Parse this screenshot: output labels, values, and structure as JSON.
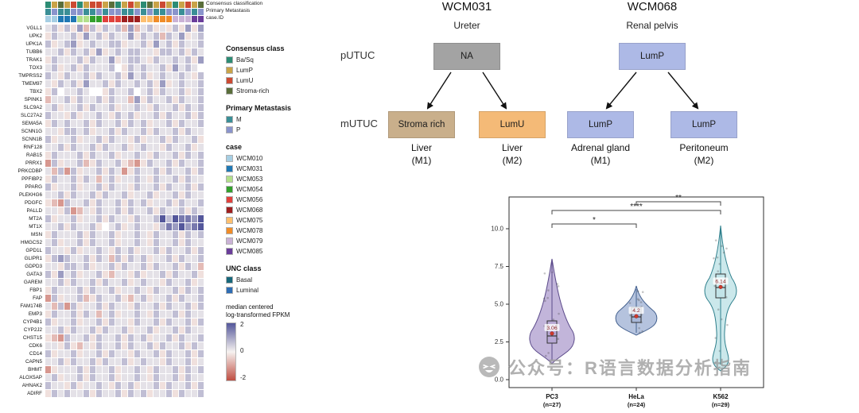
{
  "figure": {
    "annotation_labels": {
      "consensus": "Consensus classification",
      "metastasis": "Primary Metastasis",
      "case": "case.ID"
    },
    "tree_row_labels": {
      "primary": "pUTUC",
      "metastasis": "mUTUC"
    },
    "watermark": "公众号：R语言数据分析指南"
  },
  "legends": {
    "consensus": {
      "title": "Consensus class",
      "items": [
        {
          "label": "Ba/Sq",
          "color": "#2c8c74"
        },
        {
          "label": "LumP",
          "color": "#c9a348"
        },
        {
          "label": "LumU",
          "color": "#cc4a33"
        },
        {
          "label": "Stroma-rich",
          "color": "#5a6e3a"
        }
      ]
    },
    "metastasis": {
      "title": "Primary Metastasis",
      "items": [
        {
          "label": "M",
          "color": "#3a8f96"
        },
        {
          "label": "P",
          "color": "#8a94cc"
        }
      ]
    },
    "case": {
      "title": "case",
      "items": [
        {
          "label": "WCM010",
          "color": "#a6cee3"
        },
        {
          "label": "WCM031",
          "color": "#1f78b4"
        },
        {
          "label": "WCM053",
          "color": "#b2df8a"
        },
        {
          "label": "WCM054",
          "color": "#33a02c"
        },
        {
          "label": "WCM056",
          "color": "#e0413c"
        },
        {
          "label": "WCM068",
          "color": "#9e1f1f"
        },
        {
          "label": "WCM075",
          "color": "#fdbf6f"
        },
        {
          "label": "WCM078",
          "color": "#f08c28"
        },
        {
          "label": "WCM079",
          "color": "#cab2d6"
        },
        {
          "label": "WCM085",
          "color": "#6a3d9a"
        }
      ]
    },
    "unc": {
      "title": "UNC class",
      "items": [
        {
          "label": "Basal",
          "color": "#17677a"
        },
        {
          "label": "Luminal",
          "color": "#2e6db4"
        }
      ]
    },
    "scale": {
      "title_lines": [
        "median centered",
        "log-transformed FPKM"
      ],
      "ticks": [
        "2",
        "0",
        "-2"
      ],
      "top_color": "#54579b",
      "mid_color": "#f6f2f0",
      "bottom_color": "#bf4e42"
    }
  },
  "trees": [
    {
      "title": "WCM031",
      "site": "Ureter",
      "parent": {
        "label": "NA",
        "color": "#a3a3a3"
      },
      "children": [
        {
          "label": "Stroma rich",
          "color": "#c9af8b",
          "site": "Liver",
          "met": "(M1)"
        },
        {
          "label": "LumU",
          "color": "#f4ba77",
          "site": "Liver",
          "met": "(M2)"
        }
      ]
    },
    {
      "title": "WCM068",
      "site": "Renal pelvis",
      "parent": {
        "label": "LumP",
        "color": "#adb9e6"
      },
      "children": [
        {
          "label": "LumP",
          "color": "#adb9e6",
          "site": "Adrenal gland",
          "met": "(M1)"
        },
        {
          "label": "LumP",
          "color": "#adb9e6",
          "site": "Peritoneum",
          "met": "(M2)"
        }
      ]
    }
  ],
  "chart_data": [
    {
      "type": "heatmap",
      "n_cols": 25,
      "colorbar": {
        "label": "median centered log-transformed FPKM",
        "ticks": [
          2,
          0,
          -2
        ],
        "positive_color": "#54579b",
        "zero_color": "#f6f2f0",
        "negative_color": "#bf4e42"
      },
      "genes": [
        "VGLL1",
        "UPK2",
        "UPK1A",
        "TUBB6",
        "TRAK1",
        "TOX3",
        "TMPRSS2",
        "TMEM97",
        "TBX2",
        "SPINK1",
        "SLC9A2",
        "SLC27A2",
        "SEMA5A",
        "SCNN1G",
        "SCNN1B",
        "RNF128",
        "RAB15",
        "PRRX1",
        "PRKCDBP",
        "PPFIBP2",
        "PPARG",
        "PLEKHG6",
        "PDGFC",
        "PALLD",
        "MT2A",
        "MT1X",
        "MSN",
        "HMGCS2",
        "GPD1L",
        "GLIPR1",
        "GDPD3",
        "GATA3",
        "GAREM",
        "FBP1",
        "FAP",
        "FAM174B",
        "EMP3",
        "CYP4B1",
        "CYP2J2",
        "CHST15",
        "CDK6",
        "CD14",
        "CAPN5",
        "BHMT",
        "ALOX5AP",
        "AHNAK2",
        "ADIRF"
      ],
      "annotations": {
        "consensus_classification": "BLSLUBLUULSBLULBSLULBLULS",
        "primary_metastasis": "MPMMPPMMPMPPMMPMPMMPPMPMP",
        "case_id": "0011122334445556677788899",
        "consensus_key": {
          "B": "Ba/Sq",
          "L": "LumP",
          "U": "LumU",
          "S": "Stroma-rich"
        },
        "metastasis_key": {
          "M": "M",
          "P": "P"
        },
        "case_key": {
          "0": "WCM010",
          "1": "WCM031",
          "2": "WCM053",
          "3": "WCM054",
          "4": "WCM056",
          "5": "WCM068",
          "6": "WCM075",
          "7": "WCM078",
          "8": "WCM079",
          "9": "WCM085"
        }
      },
      "encoding": "digit 0-9 maps -2.5(red) .. +2.5(blue), x = missing(white)",
      "values_encoded": [
        "5646473646563735645464747",
        "4655647564655746563657456",
        "6456745655664556475646556",
        "5564656474565665546656465",
        "4655564655745665465565647",
        "56456465556x465655647565x",
        "6546556465564756456556546",
        "5465647556465565647456556",
        "46x5565xx46556x5646556456",
        "3556465564655374655646556",
        "5645564655645565465564656",
        "6554645565465645564655646",
        "4656556465564656455646556",
        "5546656455646556465564655",
        "6455645564655464556465564",
        "5564655646556456554655645",
        "4655564655645565465564656",
        "2645563465564324655646556",
        "5362645564652465564655646",
        "4655646535645565465564655",
        "6455645564655465564655646",
        "5564655646556455645564655",
        "4326556465564656455646556",
        "5546235465564655646556465",
        "6455645564655465569698879",
        "556465564x564565546879789",
        "4655564655645565465564656",
        "5645564655645565465564655",
        "6554645565465645564655646",
        "4676556465364656455646556",
        "5546656455646556465564653",
        "6475645564355464556465564",
        "5564655646556456554655645",
        "4655564655645565465564656",
        "2645563465564356455646556",
        "5362645564655465564655646",
        "4655646535645565465564655",
        "6455645564655465564655646",
        "5564655646556455645564655",
        "4326556465564656455646556",
        "5546435465564655646556465",
        "6455645564655465564655646",
        "5564655646556456554655645",
        "2455564655645565465564656",
        "5645564655645565465564655",
        "6554645565465645564655646",
        "4656556465564656455646556"
      ]
    },
    {
      "type": "violin",
      "categories": [
        "PC3",
        "HeLa",
        "K562"
      ],
      "n": [
        27,
        24,
        29
      ],
      "means": [
        3.06,
        4.2,
        6.14
      ],
      "mean_labels": [
        "3.06",
        "4.2",
        "6.14"
      ],
      "ylim": [
        0,
        10.5
      ],
      "yticks": [
        0,
        2.5,
        5,
        7.5,
        10
      ],
      "ytick_labels": [
        "0.0",
        "2.5",
        "5.0",
        "7.5",
        "10.0"
      ],
      "comparisons": [
        {
          "between": [
            "PC3",
            "HeLa"
          ],
          "stars": "*"
        },
        {
          "between": [
            "PC3",
            "K562"
          ],
          "stars": "****"
        },
        {
          "between": [
            "HeLa",
            "K562"
          ],
          "stars": "**"
        }
      ],
      "colors": {
        "PC3": {
          "fill": "#b7a8d4",
          "stroke": "#5b4a8a"
        },
        "HeLa": {
          "fill": "#a8b8d8",
          "stroke": "#44618f"
        },
        "K562": {
          "fill": "#c2e4e8",
          "stroke": "#2e7f8c"
        }
      }
    }
  ]
}
